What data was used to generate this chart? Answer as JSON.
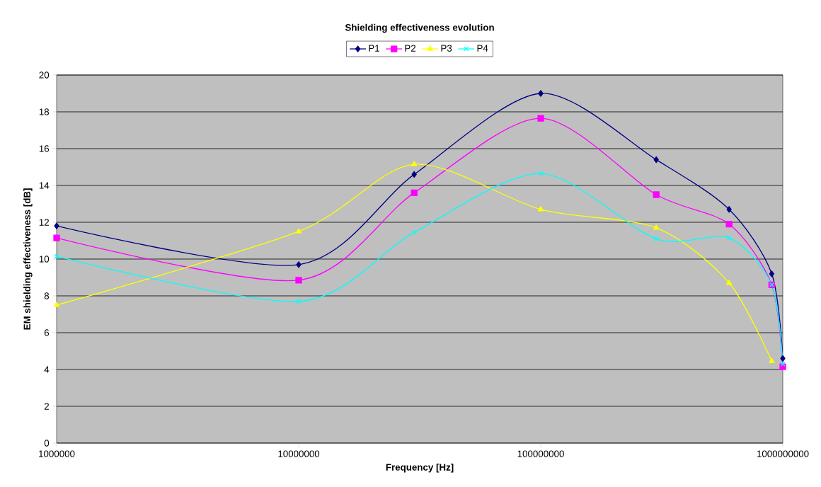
{
  "chart_data": {
    "type": "line",
    "title": "Shielding effectiveness evolution",
    "xlabel": "Frequency [Hz]",
    "ylabel": "EM shielding effectiveness [dB]",
    "x": [
      1000000,
      10000000,
      30000000,
      100000000,
      300000000,
      600000000,
      900000000,
      1000000000
    ],
    "series": [
      {
        "name": "P1",
        "color": "#000080",
        "marker": "diamond",
        "values": [
          11.8,
          9.7,
          14.6,
          19.0,
          15.4,
          12.7,
          9.2,
          4.6
        ]
      },
      {
        "name": "P2",
        "color": "#ff00ff",
        "marker": "square",
        "values": [
          11.15,
          8.85,
          13.6,
          17.65,
          13.5,
          11.9,
          8.6,
          4.15
        ]
      },
      {
        "name": "P3",
        "color": "#ffff00",
        "marker": "triangle",
        "values": [
          7.5,
          11.5,
          15.15,
          12.7,
          11.7,
          8.7,
          4.45,
          null
        ]
      },
      {
        "name": "P4",
        "color": "#00ffff",
        "marker": "cross",
        "values": [
          10.15,
          7.7,
          11.45,
          14.65,
          11.1,
          11.15,
          8.6,
          4.3
        ]
      }
    ],
    "log": "x",
    "xlim": [
      1000000,
      1000000000
    ],
    "xticks": [
      1000000,
      10000000,
      100000000,
      1000000000
    ],
    "ylim": [
      0,
      20
    ],
    "yticks": [
      0,
      2,
      4,
      6,
      8,
      10,
      12,
      14,
      16,
      18,
      20
    ],
    "grid": "y",
    "legend": "top",
    "line_style": "solid"
  }
}
